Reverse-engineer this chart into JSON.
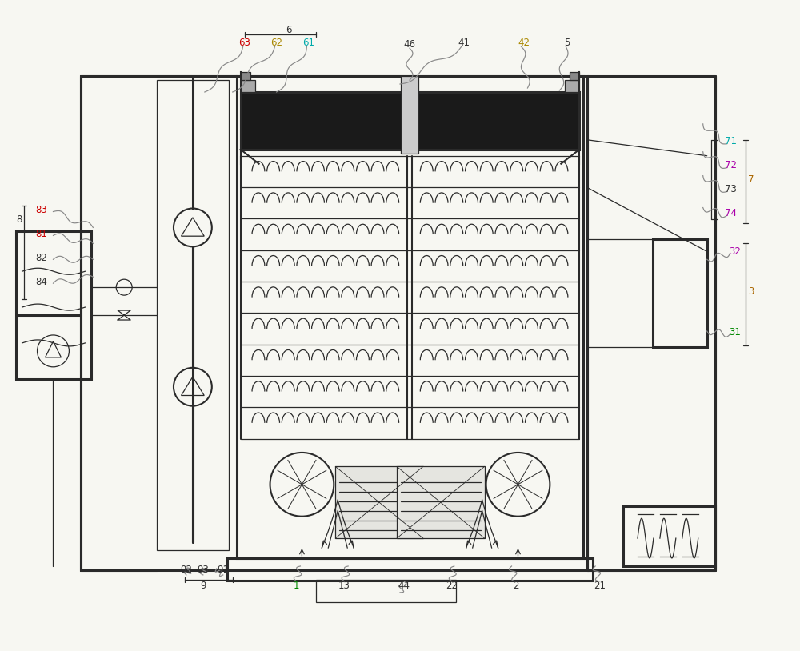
{
  "bg_color": "#f7f7f2",
  "line_color": "#2a2a2a",
  "lw_main": 2.2,
  "lw_med": 1.5,
  "lw_thin": 0.9,
  "figsize": [
    10.0,
    8.14
  ],
  "label_colors": {
    "1": "#008800",
    "2": "#333333",
    "3": "#aa6600",
    "5": "#333333",
    "6": "#333333",
    "7": "#aa6600",
    "8": "#333333",
    "9": "#333333",
    "13": "#333333",
    "21": "#333333",
    "22": "#333333",
    "31": "#008800",
    "32": "#aa00aa",
    "41": "#333333",
    "42": "#aa8800",
    "44": "#333333",
    "46": "#333333",
    "61": "#00aaaa",
    "62": "#aa8800",
    "63": "#cc0000",
    "71": "#00aaaa",
    "72": "#aa00aa",
    "73": "#333333",
    "74": "#aa00aa",
    "81": "#cc0000",
    "82": "#333333",
    "83": "#cc0000",
    "84": "#333333",
    "91": "#333333",
    "92": "#333333",
    "93": "#333333"
  }
}
